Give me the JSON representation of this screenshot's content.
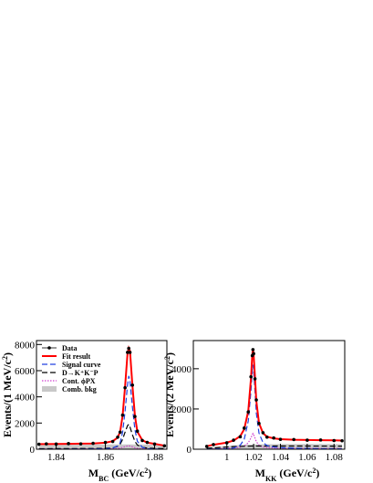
{
  "chart_data": [
    {
      "type": "line",
      "xlabel": {
        "main": "M",
        "sub": "BC",
        "text": " (GeV/c",
        "sup": "2",
        "end": ")"
      },
      "ylabel": {
        "text": "Events/(1 MeV/c",
        "sup": "2",
        "end": ")"
      },
      "legend": "upper left",
      "xlim": [
        1.832,
        1.885
      ],
      "ylim": [
        0,
        8300
      ],
      "xticks": [
        1.84,
        1.86,
        1.88
      ],
      "yticks": [
        0,
        2000,
        4000,
        6000,
        8000
      ],
      "x": [
        1.833,
        1.836,
        1.84,
        1.845,
        1.85,
        1.855,
        1.86,
        1.863,
        1.865,
        1.866,
        1.867,
        1.868,
        1.869,
        1.8695,
        1.87,
        1.871,
        1.872,
        1.873,
        1.875,
        1.877,
        1.88,
        1.884
      ],
      "series": [
        {
          "name": "Comb. bkg",
          "style": "area",
          "color": "#c8c8c8",
          "values": [
            330,
            335,
            340,
            345,
            350,
            355,
            360,
            362,
            363,
            363,
            363,
            363,
            363,
            363,
            362,
            362,
            361,
            360,
            355,
            345,
            320,
            220
          ]
        },
        {
          "name": "Cont. ϕPX",
          "style": "dotted",
          "color": "#d040d0",
          "values": [
            20,
            20,
            22,
            24,
            25,
            26,
            30,
            40,
            60,
            90,
            140,
            200,
            250,
            260,
            240,
            180,
            110,
            60,
            35,
            28,
            22,
            15
          ]
        },
        {
          "name": "D→K⁺K⁻P",
          "style": "dashed",
          "color": "#000000",
          "values": [
            40,
            40,
            42,
            45,
            50,
            55,
            70,
            110,
            220,
            380,
            750,
            1300,
            1800,
            1900,
            1700,
            1100,
            600,
            320,
            150,
            90,
            60,
            40
          ]
        },
        {
          "name": "Signal curve",
          "style": "dashed",
          "color": "#2040e0",
          "values": [
            0,
            0,
            0,
            5,
            10,
            20,
            40,
            100,
            250,
            500,
            1300,
            2900,
            4900,
            5600,
            5200,
            3200,
            1500,
            600,
            150,
            40,
            10,
            0
          ]
        },
        {
          "name": "Fit result",
          "style": "line",
          "color": "#ff0000",
          "values": [
            390,
            395,
            404,
            414,
            425,
            436,
            500,
            612,
            893,
            1333,
            2553,
            4763,
            7313,
            7723,
            7502,
            4842,
            2571,
            1340,
            690,
            503,
            412,
            275
          ]
        },
        {
          "name": "Data",
          "style": "points",
          "color": "#000000",
          "values": [
            380,
            410,
            395,
            430,
            410,
            450,
            520,
            590,
            920,
            1300,
            2600,
            4700,
            7400,
            7700,
            7400,
            4900,
            2500,
            1380,
            670,
            520,
            400,
            260
          ]
        }
      ]
    },
    {
      "type": "line",
      "xlabel": {
        "main": "M",
        "sub": "KK",
        "text": " (GeV/c",
        "sup": "2",
        "end": ")"
      },
      "ylabel": {
        "text": "Events/(2 MeV/c",
        "sup": "2",
        "end": ")"
      },
      "xlim": [
        0.975,
        1.088
      ],
      "ylim": [
        0,
        5400
      ],
      "xticks": [
        1,
        1.02,
        1.04,
        1.06,
        1.08
      ],
      "yticks": [
        0,
        2000,
        4000
      ],
      "x": [
        0.985,
        0.99,
        1.0,
        1.005,
        1.01,
        1.013,
        1.016,
        1.018,
        1.019,
        1.0195,
        1.02,
        1.021,
        1.022,
        1.024,
        1.027,
        1.03,
        1.035,
        1.04,
        1.05,
        1.06,
        1.07,
        1.08,
        1.086
      ],
      "series": [
        {
          "style": "area",
          "color": "#c8c8c8",
          "values": [
            60,
            100,
            160,
            190,
            210,
            220,
            230,
            235,
            237,
            238,
            238,
            239,
            240,
            242,
            245,
            248,
            252,
            255,
            258,
            260,
            260,
            258,
            255
          ]
        },
        {
          "style": "dotted",
          "color": "#d040d0",
          "values": [
            10,
            20,
            40,
            60,
            100,
            160,
            320,
            560,
            720,
            780,
            720,
            560,
            380,
            200,
            110,
            80,
            60,
            50,
            45,
            40,
            38,
            36,
            35
          ]
        },
        {
          "style": "dashed",
          "color": "#000000",
          "values": [
            50,
            70,
            110,
            130,
            140,
            145,
            150,
            155,
            158,
            160,
            160,
            160,
            160,
            160,
            160,
            160,
            160,
            160,
            160,
            158,
            156,
            154,
            150
          ]
        },
        {
          "style": "dashed",
          "color": "#2040e0",
          "values": [
            0,
            10,
            30,
            60,
            200,
            500,
            1400,
            2900,
            3900,
            4200,
            3900,
            2900,
            1800,
            800,
            330,
            180,
            110,
            80,
            50,
            35,
            25,
            20,
            15
          ]
        },
        {
          "style": "line",
          "color": "#ff0000",
          "values": [
            150,
            220,
            330,
            430,
            650,
            1000,
            1900,
            3500,
            4700,
            5000,
            4700,
            3600,
            2400,
            1300,
            800,
            620,
            540,
            500,
            470,
            460,
            450,
            440,
            430
          ]
        },
        {
          "style": "points",
          "color": "#000000",
          "values": [
            140,
            230,
            320,
            450,
            620,
            1050,
            1850,
            3600,
            4650,
            4950,
            4750,
            3500,
            2450,
            1280,
            820,
            600,
            560,
            490,
            480,
            450,
            460,
            430,
            420
          ]
        }
      ]
    }
  ]
}
